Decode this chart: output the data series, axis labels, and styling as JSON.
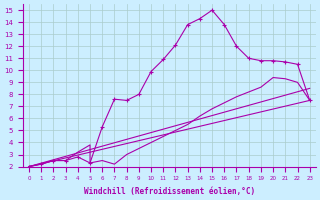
{
  "background_color": "#cceeff",
  "line_color": "#aa00aa",
  "grid_color": "#aacccc",
  "xlabel": "Windchill (Refroidissement éolien,°C)",
  "xlim": [
    -0.5,
    23.5
  ],
  "ylim": [
    2,
    15.5
  ],
  "xticks": [
    0,
    1,
    2,
    3,
    4,
    5,
    6,
    7,
    8,
    9,
    10,
    11,
    12,
    13,
    14,
    15,
    16,
    17,
    18,
    19,
    20,
    21,
    22,
    23
  ],
  "yticks": [
    2,
    3,
    4,
    5,
    6,
    7,
    8,
    9,
    10,
    11,
    12,
    13,
    14,
    15
  ],
  "line1_x": [
    0,
    1,
    2,
    3,
    4,
    5,
    6,
    7,
    8,
    9,
    10,
    11,
    12,
    13,
    14,
    15,
    16,
    17,
    18,
    19,
    20,
    21,
    22,
    23
  ],
  "line1_y": [
    2.0,
    2.2,
    2.5,
    2.5,
    2.8,
    2.3,
    5.3,
    7.6,
    7.5,
    8.0,
    9.9,
    10.9,
    12.1,
    13.8,
    14.3,
    15.0,
    13.8,
    12.0,
    11.0,
    10.8,
    10.8,
    10.7,
    10.5,
    7.5
  ],
  "line2_x": [
    0,
    23
  ],
  "line2_y": [
    2.0,
    7.5
  ],
  "line3_x": [
    0,
    23
  ],
  "line3_y": [
    2.0,
    8.5
  ],
  "line4_x": [
    0,
    1,
    2,
    3,
    4,
    5,
    5,
    6,
    7,
    8,
    9,
    10,
    11,
    12,
    13,
    14,
    15,
    16,
    17,
    18,
    19,
    20,
    21,
    22,
    23
  ],
  "line4_y": [
    2.0,
    2.2,
    2.5,
    2.5,
    3.2,
    3.8,
    2.3,
    2.5,
    2.2,
    3.0,
    3.5,
    4.0,
    4.5,
    5.0,
    5.5,
    6.2,
    6.8,
    7.3,
    7.8,
    8.2,
    8.6,
    9.4,
    9.3,
    9.0,
    7.5
  ]
}
